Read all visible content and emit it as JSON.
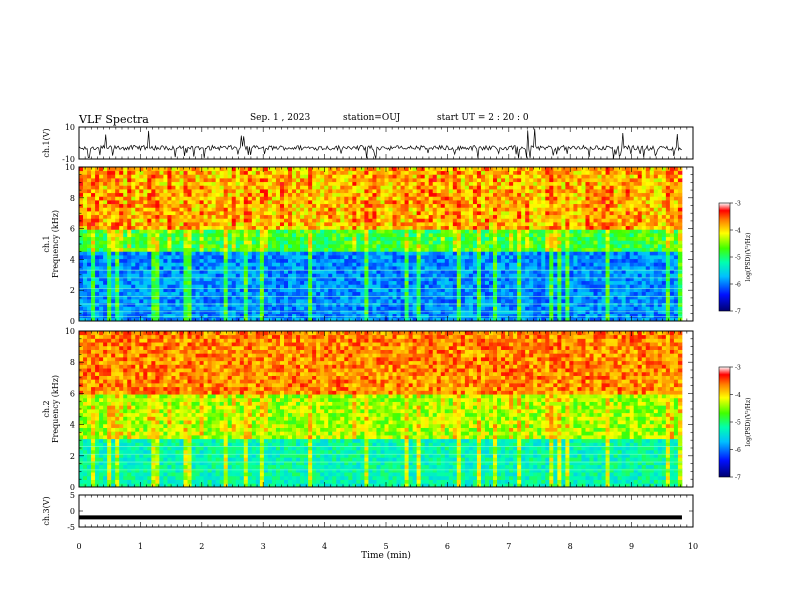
{
  "header": {
    "title": "VLF Spectra",
    "date": "Sep. 1 , 2023",
    "station": "station=OUJ",
    "start": "start UT =  2 : 20 : 0"
  },
  "chart_data": [
    {
      "type": "line",
      "ylabel": "ch.1(V)",
      "ylim": [
        -10,
        10
      ],
      "y_ticklabels": [
        "10",
        "-10"
      ],
      "series": [
        {
          "baseline": -3,
          "spike_min": -10,
          "spike_max": 10
        }
      ]
    },
    {
      "type": "heatmap",
      "ylabel_prefix": "ch.1",
      "ylabel": "Frequency (kHz)",
      "ylim": [
        0,
        10
      ],
      "y_ticks": [
        "0",
        "2",
        "4",
        "6",
        "8",
        "10"
      ],
      "colorbar": {
        "label": "log(PSD)(V²/Hz)",
        "ticks": [
          "-3",
          "-4",
          "-5",
          "-6",
          "-7"
        ],
        "range": [
          -7,
          -3
        ]
      }
    },
    {
      "type": "heatmap",
      "ylabel_prefix": "ch.2",
      "ylabel": "Frequency (kHz)",
      "ylim": [
        0,
        10
      ],
      "y_ticks": [
        "0",
        "2",
        "4",
        "6",
        "8",
        "10"
      ],
      "colorbar": {
        "label": "log(PSD)(V²/Hz)",
        "ticks": [
          "-3",
          "-4",
          "-5",
          "-6",
          "-7"
        ],
        "range": [
          -7,
          -3
        ]
      }
    },
    {
      "type": "line",
      "ylabel": "ch.3(V)",
      "ylim": [
        -5,
        5
      ],
      "y_ticklabels": [
        "5",
        "0",
        "-5"
      ],
      "series": [
        {
          "constant": -2
        }
      ]
    }
  ],
  "xaxis": {
    "xlabel": "Time (min)",
    "xlim": [
      0,
      10
    ],
    "ticks": [
      "0",
      "1",
      "2",
      "3",
      "4",
      "5",
      "6",
      "7",
      "8",
      "9",
      "10"
    ],
    "data_end": 9.82
  }
}
